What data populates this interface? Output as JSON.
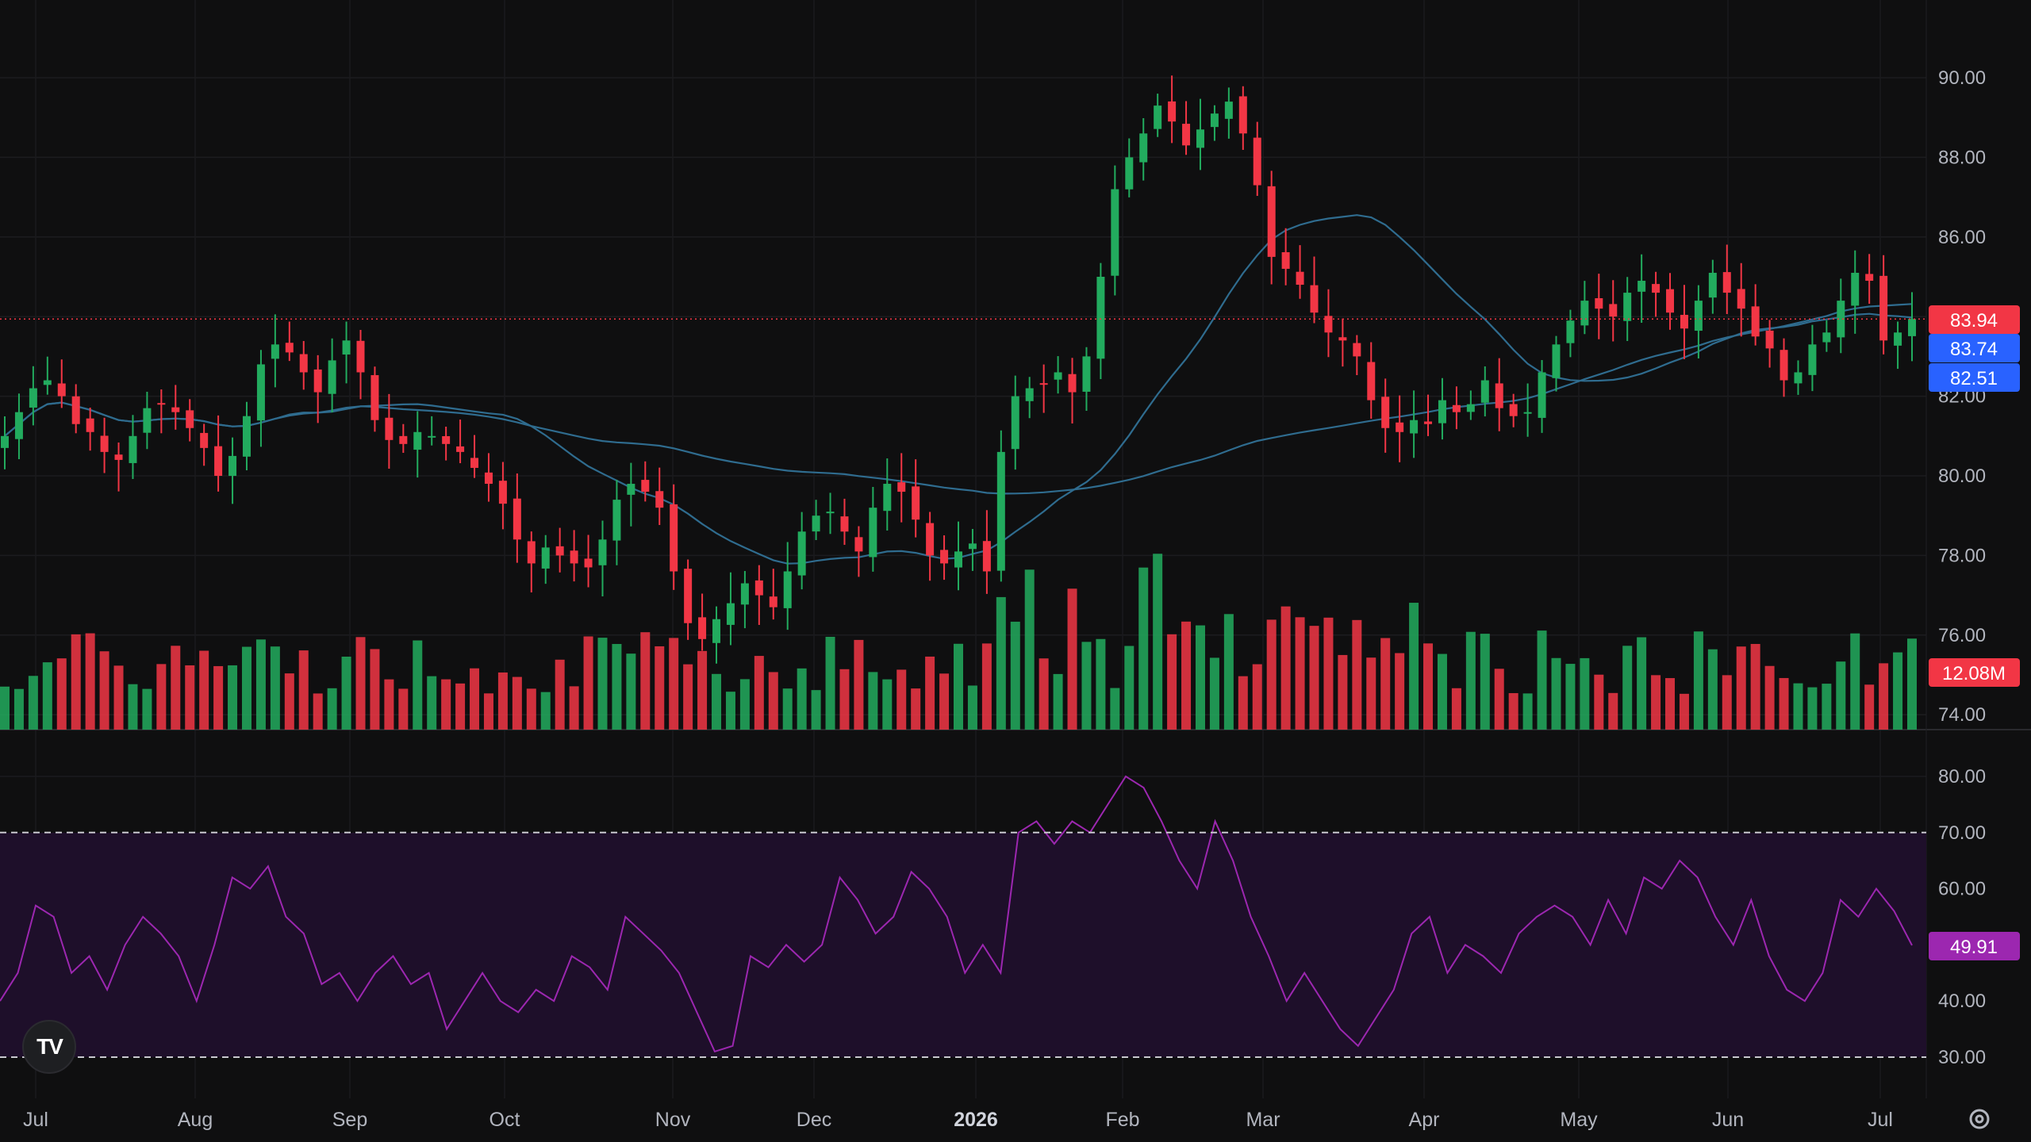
{
  "chart_data": {
    "type": "candlestick",
    "price_axis": {
      "ticks": [
        "90.00",
        "88.00",
        "86.00",
        "84.00",
        "82.00",
        "80.00",
        "78.00",
        "76.00",
        "74.00"
      ],
      "range": [
        73.6,
        91.1
      ]
    },
    "rsi_axis": {
      "ticks": [
        "80.00",
        "70.00",
        "60.00",
        "40.00",
        "30.00"
      ],
      "range": [
        28,
        84
      ],
      "bands": [
        30,
        70
      ]
    },
    "time_axis": [
      {
        "label": "Jul",
        "bold": false
      },
      {
        "label": "Aug",
        "bold": false
      },
      {
        "label": "Sep",
        "bold": false
      },
      {
        "label": "Oct",
        "bold": false
      },
      {
        "label": "Nov",
        "bold": false
      },
      {
        "label": "Dec",
        "bold": false
      },
      {
        "label": "2026",
        "bold": true
      },
      {
        "label": "Feb",
        "bold": false
      },
      {
        "label": "Mar",
        "bold": false
      },
      {
        "label": "Apr",
        "bold": false
      },
      {
        "label": "May",
        "bold": false
      },
      {
        "label": "Jun",
        "bold": false
      },
      {
        "label": "Jul",
        "bold": false
      }
    ],
    "price_closes": [
      81.0,
      81.6,
      82.2,
      82.4,
      82.0,
      81.3,
      81.1,
      80.6,
      80.4,
      81.0,
      81.7,
      81.8,
      81.6,
      81.2,
      80.7,
      80.0,
      80.5,
      81.5,
      82.8,
      83.3,
      83.1,
      82.6,
      82.1,
      82.9,
      83.4,
      82.6,
      81.4,
      80.9,
      80.8,
      81.1,
      81.0,
      80.8,
      80.6,
      80.2,
      79.8,
      79.3,
      78.4,
      77.8,
      78.2,
      78.0,
      77.8,
      77.7,
      78.4,
      79.4,
      79.8,
      79.6,
      79.2,
      77.6,
      76.3,
      75.9,
      76.4,
      76.8,
      77.3,
      77.0,
      76.7,
      77.6,
      78.6,
      79.0,
      79.1,
      78.6,
      78.1,
      79.2,
      79.8,
      79.6,
      78.9,
      78.0,
      77.8,
      78.1,
      78.3,
      77.6,
      80.6,
      82.0,
      82.2,
      82.3,
      82.6,
      82.1,
      83.0,
      85.0,
      87.2,
      88.0,
      88.6,
      89.3,
      88.9,
      88.3,
      88.7,
      89.1,
      89.4,
      88.6,
      87.3,
      85.5,
      85.2,
      84.8,
      84.1,
      83.6,
      83.4,
      83.0,
      81.9,
      81.2,
      81.1,
      81.4,
      81.3,
      81.9,
      81.6,
      81.8,
      82.4,
      81.7,
      81.5,
      81.6,
      82.6,
      83.3,
      83.9,
      84.4,
      84.2,
      84.0,
      84.6,
      84.9,
      84.6,
      84.1,
      83.7,
      84.4,
      85.1,
      84.6,
      84.2,
      83.5,
      83.2,
      82.4,
      82.6,
      83.3,
      83.6,
      84.4,
      85.1,
      84.9,
      83.4,
      83.6,
      83.94
    ],
    "volume_ticks": [],
    "rsi_values": [
      40,
      45,
      57,
      55,
      45,
      48,
      42,
      50,
      55,
      52,
      48,
      40,
      50,
      62,
      60,
      64,
      55,
      52,
      43,
      45,
      40,
      45,
      48,
      43,
      45,
      35,
      40,
      45,
      40,
      38,
      42,
      40,
      48,
      46,
      42,
      55,
      52,
      49,
      45,
      38,
      31,
      32,
      48,
      46,
      50,
      47,
      50,
      62,
      58,
      52,
      55,
      63,
      60,
      55,
      45,
      50,
      45,
      70,
      72,
      68,
      72,
      70,
      75,
      80,
      78,
      72,
      65,
      60,
      72,
      65,
      55,
      48,
      40,
      45,
      40,
      35,
      32,
      37,
      42,
      52,
      55,
      45,
      50,
      48,
      45,
      52,
      55,
      57,
      55,
      50,
      58,
      52,
      62,
      60,
      65,
      62,
      55,
      50,
      58,
      48,
      42,
      40,
      45,
      58,
      55,
      60,
      56,
      49.91
    ],
    "ma_fast_end": 83.74,
    "ma_slow_end": 82.51
  },
  "last_price_tag": {
    "text": "83.94",
    "color": "#f23645"
  },
  "ma_fast_tag": {
    "text": "83.74",
    "color": "#2962ff"
  },
  "ma_slow_tag": {
    "text": "82.51",
    "color": "#2962ff"
  },
  "volume_tag": {
    "text": "12.08M",
    "color": "#f23645"
  },
  "rsi_tag": {
    "text": "49.91",
    "color": "#9c27b0"
  },
  "colors": {
    "up": "#22ab5e",
    "down": "#f23645",
    "ma": "#2f6c8f",
    "rsi": "#9c27b0"
  },
  "logo": {
    "icon": "tradingview-logo"
  },
  "settings": {
    "icon": "gear-icon"
  }
}
